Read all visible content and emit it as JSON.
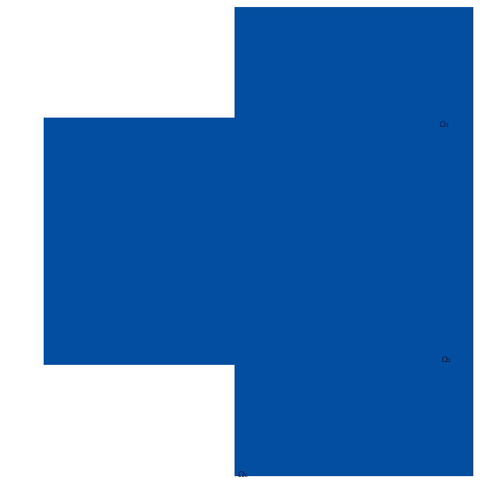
{
  "figure": {
    "type": "domain-decomposition-diagram",
    "description": "White background with one connected solid blue region formed by two overlapping axis-aligned rectangles; three tiny dark subdomain labels",
    "colors": {
      "background": "#ffffff",
      "subdomain": "#034EA1",
      "label": "#0E0E24"
    },
    "regions": [
      {
        "id": "right-subdomain-rect"
      },
      {
        "id": "left-subdomain-rect"
      }
    ],
    "labels": [
      {
        "id": "omega-1",
        "text": "Ω₁"
      },
      {
        "id": "omega-2",
        "text": "Ω₂"
      },
      {
        "id": "omega-k",
        "text": "Ωₖ"
      }
    ]
  }
}
